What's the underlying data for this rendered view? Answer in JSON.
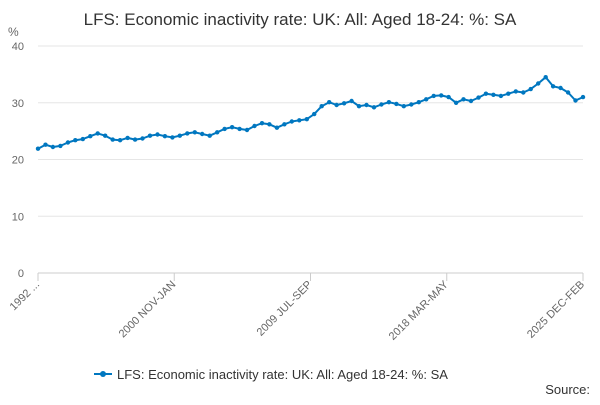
{
  "chart_data": {
    "type": "line",
    "title": "LFS: Economic inactivity rate: UK: All: Aged 18-24: %: SA",
    "ylabel": "%",
    "xlabel": "",
    "ylim": [
      0,
      40
    ],
    "yticks": [
      0,
      10,
      20,
      30,
      40
    ],
    "x_tick_labels": [
      "1992 ...",
      "2000 NOV-JAN",
      "2009 JUL-SEP",
      "2018 MAR-MAY",
      "2025 DEC-FEB"
    ],
    "legend": "bottom-center",
    "source_label": "Source:",
    "series": [
      {
        "name": "LFS: Economic inactivity rate: UK: All: Aged 18-24: %: SA",
        "color": "#0077c0",
        "values": [
          21.9,
          22.6,
          22.2,
          22.4,
          23.0,
          23.4,
          23.6,
          24.1,
          24.6,
          24.2,
          23.5,
          23.4,
          23.8,
          23.5,
          23.7,
          24.2,
          24.4,
          24.1,
          23.9,
          24.2,
          24.6,
          24.8,
          24.5,
          24.2,
          24.8,
          25.4,
          25.7,
          25.4,
          25.2,
          25.9,
          26.4,
          26.2,
          25.6,
          26.2,
          26.7,
          26.9,
          27.1,
          28.0,
          29.4,
          30.1,
          29.6,
          29.9,
          30.3,
          29.4,
          29.6,
          29.2,
          29.7,
          30.1,
          29.8,
          29.4,
          29.7,
          30.1,
          30.6,
          31.2,
          31.3,
          31.0,
          30.0,
          30.6,
          30.3,
          30.9,
          31.6,
          31.4,
          31.2,
          31.6,
          32.0,
          31.8,
          32.4,
          33.4,
          34.5,
          32.9,
          32.6,
          31.8,
          30.4,
          31.0
        ]
      }
    ]
  }
}
